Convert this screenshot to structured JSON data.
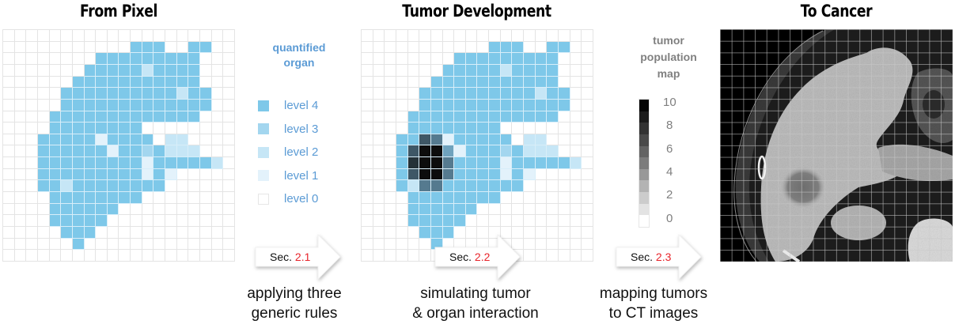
{
  "panels": {
    "left": {
      "title": "From Pixel"
    },
    "middle": {
      "title": "Tumor Development"
    },
    "right": {
      "title": "To Cancer"
    }
  },
  "organ_legend": {
    "title_line1": "quantified",
    "title_line2": "organ",
    "title_color": "#5b9bd5",
    "items": [
      {
        "label": "level 4",
        "color": "#7ec8e9"
      },
      {
        "label": "level 3",
        "color": "#a3d6ef"
      },
      {
        "label": "level 2",
        "color": "#c6e6f6"
      },
      {
        "label": "level 1",
        "color": "#e3f2fb"
      },
      {
        "label": "level 0",
        "color": "#ffffff"
      }
    ]
  },
  "tumor_legend": {
    "title_line1": "tumor",
    "title_line2": "population",
    "title_line3": "map",
    "title_color": "#808080",
    "ticks": [
      "10",
      "8",
      "6",
      "4",
      "2",
      "0"
    ],
    "scale_colors": [
      "#050505",
      "#1b1b1b",
      "#333333",
      "#4a4a4a",
      "#636363",
      "#7c7c7c",
      "#989898",
      "#b3b3b3",
      "#cccccc",
      "#e3e3e3",
      "#ffffff"
    ]
  },
  "arrows": [
    {
      "prefix": "Sec. ",
      "number": "2.1",
      "caption_line1": "applying three",
      "caption_line2": "generic rules"
    },
    {
      "prefix": "Sec. ",
      "number": "2.2",
      "caption_line1": "simulating tumor",
      "caption_line2": "& organ interaction"
    },
    {
      "prefix": "Sec. ",
      "number": "2.3",
      "caption_line1": "mapping tumors",
      "caption_line2": "to CT images"
    }
  ],
  "grids": {
    "size": 20,
    "colors": {
      "0": "#ffffff",
      "1": "#e3f2fb",
      "2": "#c6e6f6",
      "3": "#a3d6ef",
      "4": "#7ec8e9",
      "T": "#2b3a42",
      "K": "#0d0d0d",
      "D": "#3e5766",
      "E": "#253238",
      "M": "#557a8f",
      "N": "#6fa2bd"
    },
    "pixel_grid": [
      "00000000000000000000",
      "00000000000444004400",
      "00000000444444444000",
      "00000004444424444000",
      "00000044444444444000",
      "00000444444444424400",
      "00000444444444444400",
      "00004444444444444000",
      "00004444444400000000",
      "00044444144440220000",
      "00044444414434222000",
      "00044444444414444420",
      "00044444444414100000",
      "00044244444444000000",
      "00004444444400000000",
      "00004444440000000000",
      "00004444400000000000",
      "00000444000000000000",
      "00000040000000000000",
      "00000000000000000000"
    ],
    "tumor_grid": [
      "00000000000000000000",
      "00000000000444004400",
      "00000000444444444000",
      "00000004444424444000",
      "00000044444444444000",
      "00000444444444424400",
      "00000444444444444400",
      "00004444444444444000",
      "00004444444400000000",
      "00044DM1444440220000",
      "0004DKKN144434222000",
      "0004EKKM444414444420",
      "0004DKKM444414100000",
      "00042MM4444444000000",
      "00004444444400000000",
      "00004444440000000000",
      "00004444400000000000",
      "00000444000000000000",
      "00000040000000000000",
      "00000000000000000000"
    ]
  },
  "ct_image": {
    "description": "abdominal CT slice with liver tumor, grid overlay"
  }
}
